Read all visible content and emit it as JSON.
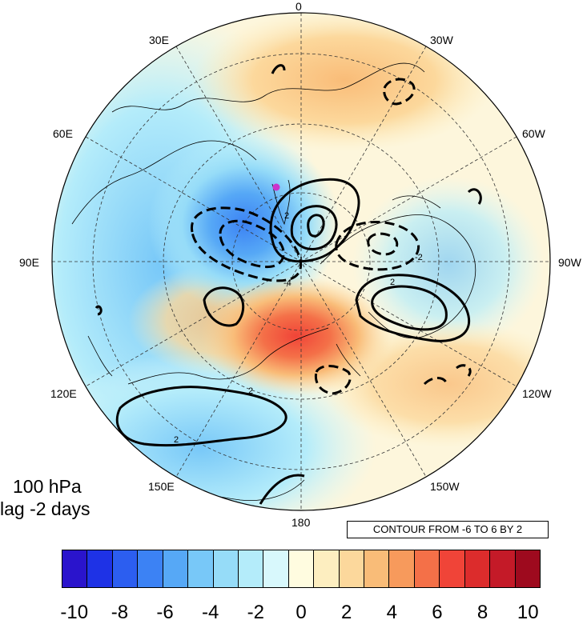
{
  "map": {
    "projection": "north polar stereographic",
    "longitude_labels": [
      "0",
      "30W",
      "60W",
      "90W",
      "120W",
      "150W",
      "180",
      "150E",
      "120E",
      "90E",
      "60E",
      "30E"
    ],
    "pole_marker_color": "#cc33cc"
  },
  "title": {
    "line1": "100 hPa",
    "line2": "lag -2 days"
  },
  "contour_info": "CONTOUR FROM -6 TO 6 BY 2",
  "contour_labels": [
    "2",
    "2",
    "2",
    "2",
    "-4",
    "-2"
  ],
  "colorbar": {
    "ticks": [
      "-10",
      "-8",
      "-6",
      "-4",
      "-2",
      "0",
      "2",
      "4",
      "6",
      "8",
      "10"
    ],
    "colors": [
      "#2a14cc",
      "#1e32e6",
      "#2c5ef0",
      "#3c82f4",
      "#56a8f6",
      "#78c8f8",
      "#96dcf8",
      "#b4ecfa",
      "#d8f8fc",
      "#fffce0",
      "#fdeec0",
      "#fcd89c",
      "#f9bc78",
      "#f79a5c",
      "#f47048",
      "#f04438",
      "#dc2c2c",
      "#c41a28",
      "#9e0a1e"
    ]
  },
  "colors": {
    "land_outline": "#000000",
    "ocean_background": "#ffffff"
  }
}
